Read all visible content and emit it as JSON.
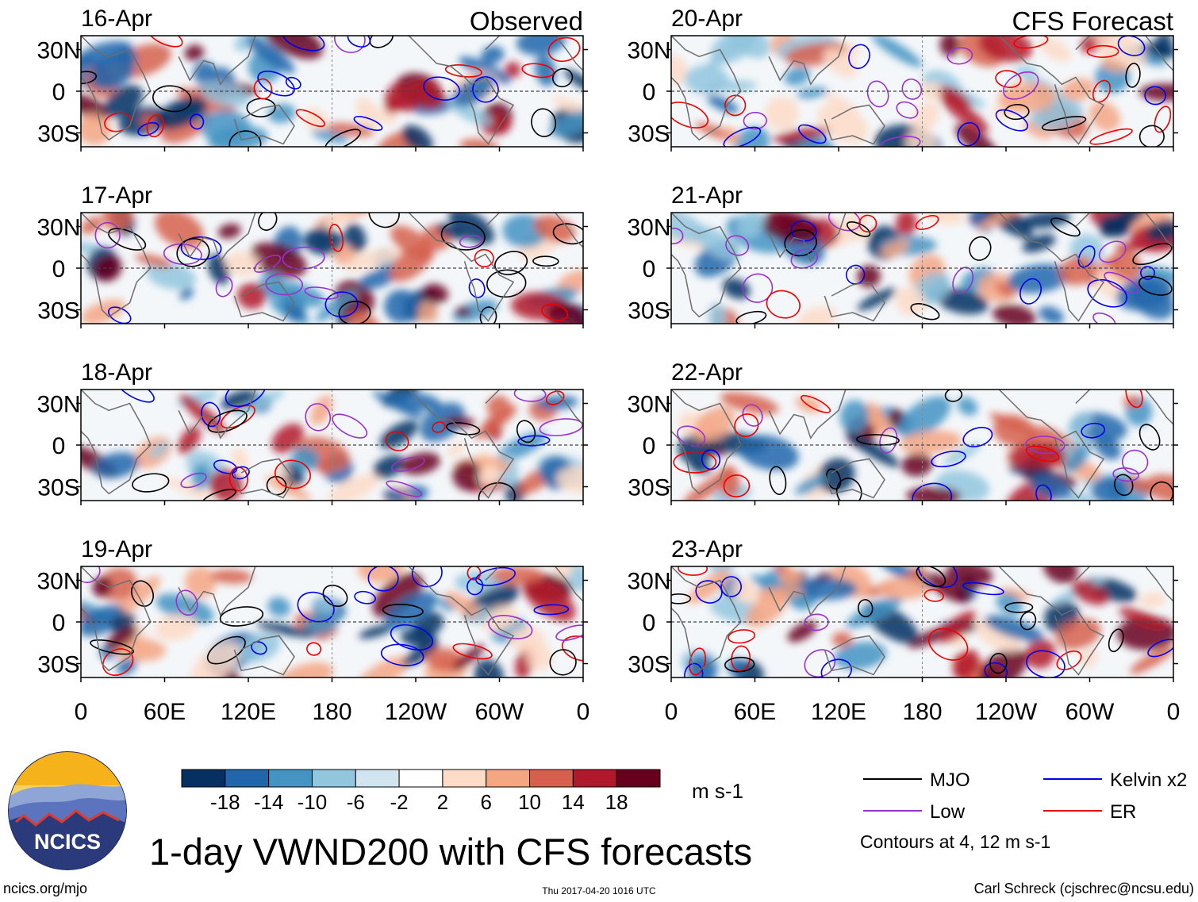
{
  "chart_data": {
    "type": "heatmap",
    "title": "1-day VWND200 with CFS forecasts",
    "units": "m s-1",
    "variable": "VWND200",
    "columns": [
      {
        "heading": "Observed",
        "panels": [
          "16-Apr",
          "17-Apr",
          "18-Apr",
          "19-Apr"
        ]
      },
      {
        "heading": "CFS Forecast",
        "panels": [
          "20-Apr",
          "21-Apr",
          "22-Apr",
          "23-Apr"
        ]
      }
    ],
    "x_ticks": [
      "0",
      "60E",
      "120E",
      "180",
      "120W",
      "60W",
      "0"
    ],
    "x_range_deg": [
      0,
      360
    ],
    "y_ticks": [
      "30N",
      "0",
      "30S"
    ],
    "y_range_deg": [
      -40,
      40
    ],
    "colorbar": {
      "labels": [
        "-18",
        "-14",
        "-10",
        "-6",
        "-2",
        "2",
        "6",
        "10",
        "14",
        "18"
      ],
      "colors": [
        "#053061",
        "#2166ac",
        "#4393c3",
        "#92c5de",
        "#d1e5f0",
        "#ffffff",
        "#fddbc7",
        "#f4a582",
        "#d6604d",
        "#b2182b",
        "#67001f"
      ]
    },
    "legend": {
      "items": [
        {
          "label": "MJO",
          "color": "#000000"
        },
        {
          "label": "Kelvin x2",
          "color": "#0000ee"
        },
        {
          "label": "Low",
          "color": "#9932cc"
        },
        {
          "label": "ER",
          "color": "#ee0000"
        }
      ],
      "note": "Contours at 4, 12 m s-1"
    }
  },
  "logo": {
    "text": "NCICS"
  },
  "footer": {
    "url": "ncics.org/mjo",
    "timestamp": "Thu 2017-04-20 1016 UTC",
    "credit": "Carl Schreck (cjschrec@ncsu.edu)"
  }
}
